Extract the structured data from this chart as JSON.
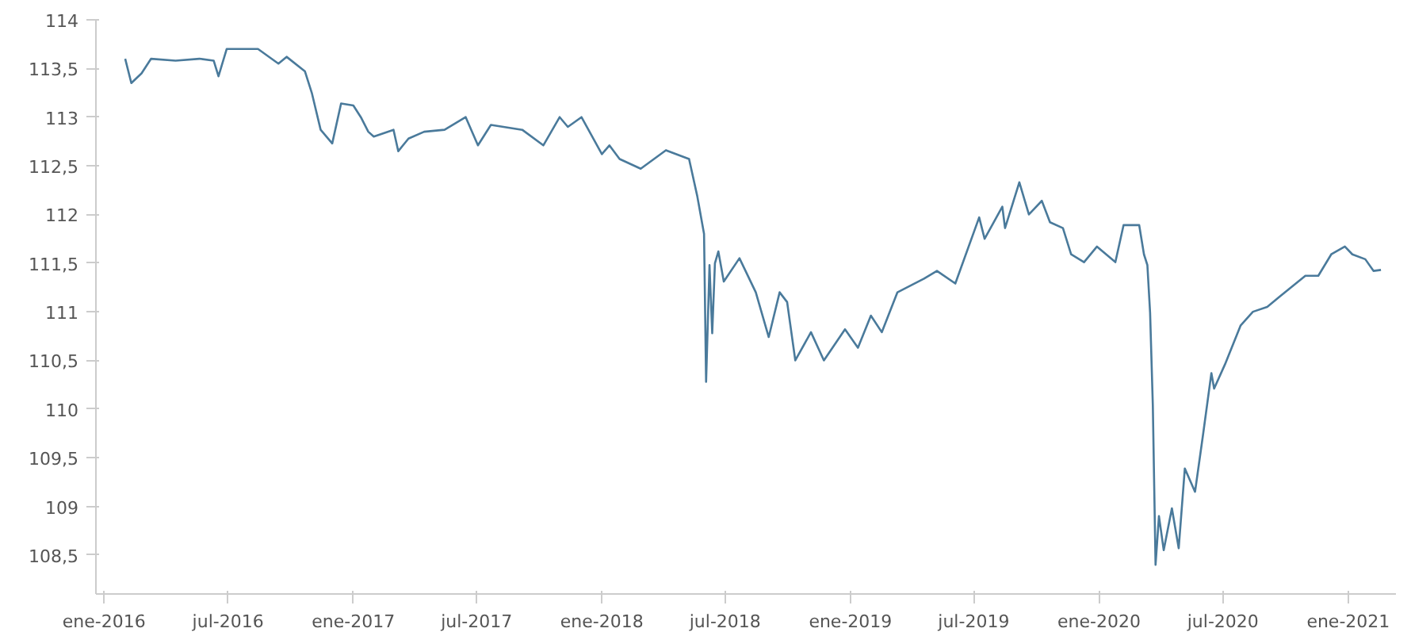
{
  "chart_data": {
    "type": "line",
    "grid": false,
    "marker": "none",
    "line_style": "solid",
    "xlim": [
      "2015-12-20",
      "2021-03-12"
    ],
    "ylim": [
      108.1,
      114
    ],
    "xticks": [
      {
        "value": "2016-01-01",
        "label": "ene-2016"
      },
      {
        "value": "2016-07-01",
        "label": "jul-2016"
      },
      {
        "value": "2017-01-01",
        "label": "ene-2017"
      },
      {
        "value": "2017-07-01",
        "label": "jul-2017"
      },
      {
        "value": "2018-01-01",
        "label": "ene-2018"
      },
      {
        "value": "2018-07-01",
        "label": "jul-2018"
      },
      {
        "value": "2019-01-01",
        "label": "ene-2019"
      },
      {
        "value": "2019-07-01",
        "label": "jul-2019"
      },
      {
        "value": "2020-01-01",
        "label": "ene-2020"
      },
      {
        "value": "2020-07-01",
        "label": "jul-2020"
      },
      {
        "value": "2021-01-01",
        "label": "ene-2021"
      }
    ],
    "yticks": [
      {
        "value": 108.5,
        "label": "108,5"
      },
      109,
      {
        "value": 109.5,
        "label": "109,5"
      },
      110,
      {
        "value": 110.5,
        "label": "110,5"
      },
      111,
      {
        "value": 111.5,
        "label": "111,5"
      },
      112,
      {
        "value": 112.5,
        "label": "112,5"
      },
      113,
      {
        "value": 113.5,
        "label": "113,5"
      },
      114
    ],
    "series": [
      {
        "color": "#4a7a9b",
        "x": [
          "2016-02-01",
          "2016-02-10",
          "2016-02-25",
          "2016-03-10",
          "2016-04-15",
          "2016-05-20",
          "2016-06-10",
          "2016-06-17",
          "2016-06-29",
          "2016-08-14",
          "2016-09-13",
          "2016-09-25",
          "2016-10-22",
          "2016-11-01",
          "2016-11-14",
          "2016-12-01",
          "2016-12-14",
          "2017-01-01",
          "2017-01-12",
          "2017-01-23",
          "2017-01-31",
          "2017-03-01",
          "2017-03-08",
          "2017-03-23",
          "2017-04-15",
          "2017-05-15",
          "2017-06-15",
          "2017-07-03",
          "2017-07-22",
          "2017-09-06",
          "2017-10-07",
          "2017-10-31",
          "2017-11-12",
          "2017-12-02",
          "2018-01-01",
          "2018-01-12",
          "2018-01-27",
          "2018-02-27",
          "2018-04-05",
          "2018-05-09",
          "2018-05-21",
          "2018-05-31",
          "2018-06-03",
          "2018-06-08",
          "2018-06-12",
          "2018-06-16",
          "2018-06-21",
          "2018-06-29",
          "2018-07-22",
          "2018-08-15",
          "2018-09-03",
          "2018-09-19",
          "2018-09-30",
          "2018-10-12",
          "2018-11-04",
          "2018-11-23",
          "2018-12-24",
          "2019-01-12",
          "2019-01-31",
          "2019-02-16",
          "2019-03-11",
          "2019-04-19",
          "2019-05-08",
          "2019-06-04",
          "2019-07-09",
          "2019-07-17",
          "2019-08-12",
          "2019-08-16",
          "2019-09-06",
          "2019-09-20",
          "2019-10-09",
          "2019-10-21",
          "2019-11-09",
          "2019-11-21",
          "2019-12-10",
          "2019-12-29",
          "2020-01-25",
          "2020-02-06",
          "2020-02-29",
          "2020-03-07",
          "2020-03-12",
          "2020-03-16",
          "2020-03-20",
          "2020-03-24",
          "2020-03-29",
          "2020-04-05",
          "2020-04-17",
          "2020-04-27",
          "2020-05-06",
          "2020-05-21",
          "2020-06-02",
          "2020-06-14",
          "2020-06-18",
          "2020-07-04",
          "2020-07-27",
          "2020-08-14",
          "2020-09-04",
          "2020-09-23",
          "2020-10-30",
          "2020-11-18",
          "2020-12-07",
          "2020-12-27",
          "2021-01-07",
          "2021-01-26",
          "2021-02-07",
          "2021-02-18"
        ],
        "values": [
          113.6,
          113.35,
          113.45,
          113.6,
          113.58,
          113.6,
          113.58,
          113.42,
          113.7,
          113.7,
          113.55,
          113.62,
          113.47,
          113.25,
          112.87,
          112.73,
          113.14,
          113.12,
          113.0,
          112.85,
          112.8,
          112.87,
          112.65,
          112.78,
          112.85,
          112.87,
          113.0,
          112.71,
          112.92,
          112.87,
          112.71,
          113.0,
          112.9,
          113.0,
          112.62,
          112.71,
          112.57,
          112.47,
          112.66,
          112.57,
          112.19,
          111.8,
          110.28,
          111.48,
          110.78,
          111.5,
          111.62,
          111.31,
          111.55,
          111.2,
          110.74,
          111.2,
          111.1,
          110.5,
          110.79,
          110.5,
          110.82,
          110.63,
          110.96,
          110.79,
          111.2,
          111.34,
          111.42,
          111.29,
          111.97,
          111.75,
          112.08,
          111.86,
          112.33,
          112.0,
          112.14,
          111.92,
          111.86,
          111.59,
          111.51,
          111.67,
          111.51,
          111.89,
          111.89,
          111.59,
          111.48,
          110.99,
          110.04,
          108.4,
          108.9,
          108.55,
          108.98,
          108.57,
          109.39,
          109.15,
          109.75,
          110.37,
          110.21,
          110.46,
          110.86,
          111.0,
          111.05,
          111.16,
          111.37,
          111.37,
          111.59,
          111.67,
          111.59,
          111.54,
          111.42,
          111.43
        ]
      }
    ]
  }
}
